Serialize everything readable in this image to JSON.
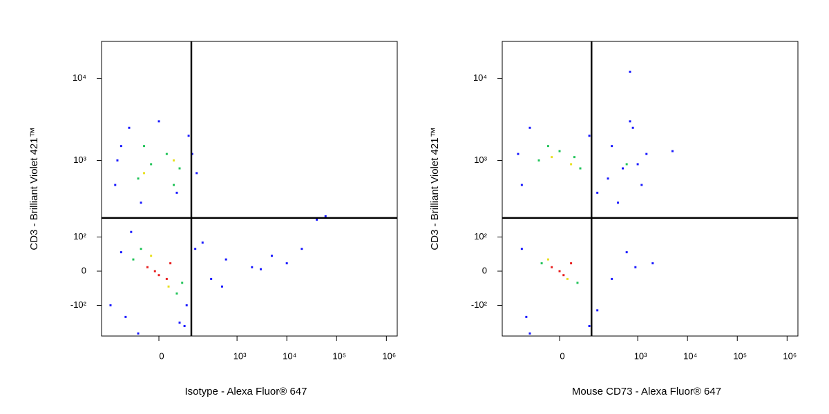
{
  "chart_data": [
    {
      "type": "scatter",
      "x_label": "Isotype - Alexa Fluor® 647",
      "y_label": "CD3 - Brilliant Violet 421™",
      "xscale": "biexponential",
      "yscale": "biexponential",
      "xlim": [
        -381,
        1650000
      ],
      "ylim": [
        -270,
        28200
      ],
      "xticks": [
        {
          "value": 0,
          "label": "0"
        },
        {
          "value": 1000,
          "label": "10³"
        },
        {
          "value": 10000,
          "label": "10⁴"
        },
        {
          "value": 100000,
          "label": "10⁵"
        },
        {
          "value": 1000000,
          "label": "10⁶"
        }
      ],
      "yticks": [
        {
          "value": -100,
          "label": "-10²"
        },
        {
          "value": 0,
          "label": "0"
        },
        {
          "value": 100,
          "label": "10²"
        },
        {
          "value": 1000,
          "label": "10³"
        },
        {
          "value": 10000,
          "label": "10⁴"
        }
      ],
      "gates": {
        "x": 115,
        "y": 190
      },
      "series": [
        {
          "color": "#1a1aff",
          "x": [
            -200,
            -150,
            -100,
            -50,
            0,
            50,
            100,
            150,
            -180,
            120,
            -120,
            80,
            -60,
            60,
            -150,
            140,
            -90,
            90,
            300,
            600,
            2000,
            5000,
            10000,
            20000,
            40000,
            60000,
            500,
            3000,
            -250,
            200
          ],
          "y": [
            500,
            1500,
            2500,
            300,
            3000,
            400,
            2000,
            700,
            1000,
            1200,
            -150,
            -200,
            -250,
            -180,
            50,
            60,
            120,
            -100,
            -20,
            30,
            10,
            40,
            20,
            60,
            180,
            200,
            -40,
            5,
            -100,
            80
          ]
        },
        {
          "color": "#22c45a",
          "x": [
            -60,
            -20,
            20,
            60,
            -40,
            40,
            -80,
            70,
            -50,
            50
          ],
          "y": [
            600,
            900,
            1200,
            800,
            1500,
            500,
            30,
            -30,
            60,
            -60
          ]
        },
        {
          "color": "#e8e020",
          "x": [
            -40,
            40,
            -20,
            25
          ],
          "y": [
            700,
            1000,
            40,
            -40
          ]
        },
        {
          "color": "#e82020",
          "x": [
            -30,
            0,
            30,
            -10,
            20
          ],
          "y": [
            10,
            -10,
            20,
            0,
            -20
          ]
        }
      ]
    },
    {
      "type": "scatter",
      "x_label": "Mouse CD73 - Alexa Fluor® 647",
      "y_label": "CD3 - Brilliant Violet 421™",
      "xscale": "biexponential",
      "yscale": "biexponential",
      "xlim": [
        -381,
        1650000
      ],
      "ylim": [
        -270,
        28200
      ],
      "xticks": [
        {
          "value": 0,
          "label": "0"
        },
        {
          "value": 1000,
          "label": "10³"
        },
        {
          "value": 10000,
          "label": "10⁴"
        },
        {
          "value": 100000,
          "label": "10⁵"
        },
        {
          "value": 1000000,
          "label": "10⁶"
        }
      ],
      "yticks": [
        {
          "value": -100,
          "label": "-10²"
        },
        {
          "value": 0,
          "label": "0"
        },
        {
          "value": 100,
          "label": "10²"
        },
        {
          "value": 1000,
          "label": "10³"
        },
        {
          "value": 10000,
          "label": "10⁴"
        }
      ],
      "gates": {
        "x": 112,
        "y": 190
      },
      "series": [
        {
          "color": "#1a1aff",
          "x": [
            -150,
            -100,
            100,
            150,
            -120,
            300,
            500,
            800,
            1200,
            1500,
            400,
            700,
            1000,
            250,
            -150,
            150,
            300,
            600,
            900,
            -100,
            100,
            -180,
            2000,
            5000,
            700
          ],
          "y": [
            500,
            2500,
            2000,
            400,
            -150,
            1500,
            800,
            2500,
            500,
            1200,
            300,
            3000,
            900,
            600,
            60,
            -120,
            -20,
            50,
            10,
            -250,
            -200,
            1200,
            20,
            1300,
            12000
          ]
        },
        {
          "color": "#22c45a",
          "x": [
            -60,
            0,
            60,
            -30,
            40,
            600,
            -50,
            50
          ],
          "y": [
            1000,
            1300,
            800,
            1500,
            1100,
            900,
            20,
            -30
          ]
        },
        {
          "color": "#e8e020",
          "x": [
            -20,
            30,
            -30,
            20
          ],
          "y": [
            1100,
            900,
            30,
            -20
          ]
        },
        {
          "color": "#e82020",
          "x": [
            -20,
            10,
            30,
            0
          ],
          "y": [
            10,
            -10,
            20,
            0
          ]
        }
      ]
    }
  ]
}
